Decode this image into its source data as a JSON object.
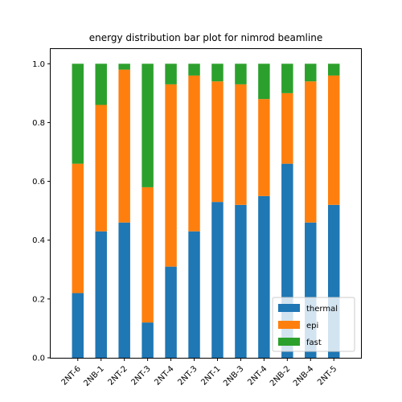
{
  "chart_data": {
    "type": "bar",
    "stacked": true,
    "title": "energy distribution bar plot for nimrod beamline",
    "xlabel": "",
    "ylabel": "",
    "ylim": [
      0,
      1.05
    ],
    "yticks": [
      "0.0",
      "0.2",
      "0.4",
      "0.6",
      "0.8",
      "1.0"
    ],
    "categories": [
      "2NT-6",
      "2NB-1",
      "2NT-2",
      "2NT-3",
      "2NT-4",
      "2NT-3",
      "2NT-1",
      "2NB-3",
      "2NT-4",
      "2NB-2",
      "2NB-4",
      "2NT-5"
    ],
    "series": [
      {
        "name": "thermal",
        "color": "#1f77b4",
        "values": [
          0.22,
          0.43,
          0.46,
          0.12,
          0.31,
          0.43,
          0.53,
          0.52,
          0.55,
          0.66,
          0.46,
          0.52
        ]
      },
      {
        "name": "epi",
        "color": "#ff7f0e",
        "values": [
          0.44,
          0.43,
          0.52,
          0.46,
          0.62,
          0.53,
          0.41,
          0.41,
          0.33,
          0.24,
          0.48,
          0.44
        ]
      },
      {
        "name": "fast",
        "color": "#2ca02c",
        "values": [
          0.34,
          0.14,
          0.02,
          0.42,
          0.07,
          0.04,
          0.06,
          0.07,
          0.12,
          0.1,
          0.06,
          0.04
        ]
      }
    ],
    "grid": false,
    "legend_position": "lower-right"
  }
}
